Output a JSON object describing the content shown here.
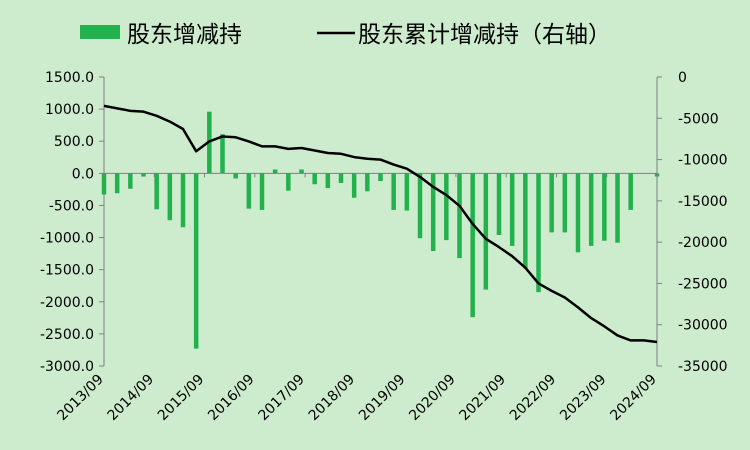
{
  "chart_data": {
    "type": "bar+line",
    "legend": [
      {
        "name": "股东增减持",
        "kind": "bar",
        "color": "#22b14c"
      },
      {
        "name": "股东累计增减持（右轴）",
        "kind": "line",
        "color": "#000000"
      }
    ],
    "legend_position": "top",
    "grid": false,
    "x_tick_labels": [
      "2013/09",
      "2014/09",
      "2015/09",
      "2016/09",
      "2017/09",
      "2018/09",
      "2019/09",
      "2020/09",
      "2021/09",
      "2022/09",
      "2023/09",
      "2024/09"
    ],
    "y_left": {
      "range": [
        -3000,
        1500
      ],
      "ticks": [
        1500,
        1000,
        500,
        0,
        -500,
        -1000,
        -1500,
        -2000,
        -2500,
        -3000
      ],
      "tick_labels": [
        "1500.0",
        "1000.0",
        "500.0",
        "0.0",
        "-500.0",
        "-1000.0",
        "-1500.0",
        "-2000.0",
        "-2500.0",
        "-3000.0"
      ]
    },
    "y_right": {
      "range": [
        -35000,
        0
      ],
      "ticks": [
        0,
        -5000,
        -10000,
        -15000,
        -20000,
        -25000,
        -30000,
        -35000
      ],
      "tick_labels": [
        "0",
        "-5000",
        "-10000",
        "-15000",
        "-20000",
        "-25000",
        "-30000",
        "-35000"
      ]
    },
    "series": [
      {
        "name": "股东增减持",
        "axis": "left",
        "color": "#22b14c",
        "values": [
          -330,
          -310,
          -240,
          -50,
          -560,
          -730,
          -840,
          -2730,
          960,
          610,
          -80,
          -550,
          -570,
          60,
          -270,
          60,
          -170,
          -230,
          -150,
          -380,
          -280,
          -120,
          -570,
          -580,
          -1010,
          -1210,
          -1040,
          -1320,
          -2240,
          -1810,
          -960,
          -1130,
          -1480,
          -1850,
          -920,
          -920,
          -1230,
          -1130,
          -1050,
          -1080,
          -570,
          0,
          -50
        ]
      },
      {
        "name": "股东累计增减持（右轴）",
        "axis": "right",
        "color": "#000000",
        "values": [
          -3500,
          -3800,
          -4100,
          -4200,
          -4700,
          -5400,
          -6300,
          -9000,
          -7800,
          -7200,
          -7300,
          -7800,
          -8400,
          -8400,
          -8700,
          -8600,
          -8900,
          -9200,
          -9300,
          -9700,
          -9900,
          -10000,
          -10600,
          -11100,
          -12100,
          -13300,
          -14300,
          -15600,
          -17800,
          -19600,
          -20600,
          -21700,
          -23100,
          -25000,
          -25900,
          -26700,
          -27900,
          -29200,
          -30200,
          -31300,
          -31900,
          -31900,
          -32100
        ]
      }
    ]
  }
}
